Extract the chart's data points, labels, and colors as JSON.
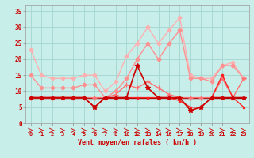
{
  "xlabel": "Vent moyen/en rafales ( km/h )",
  "bg_color": "#c8eeea",
  "grid_color": "#a8d8d4",
  "xlim": [
    -0.3,
    23.3
  ],
  "ylim": [
    0,
    37
  ],
  "yticks": [
    0,
    5,
    10,
    15,
    20,
    25,
    30,
    35
  ],
  "x_positions": [
    0,
    1,
    2,
    3,
    4,
    5,
    6,
    7,
    8,
    10,
    12,
    13,
    14,
    16,
    17,
    18,
    19,
    20,
    21,
    22,
    23
  ],
  "x_tick_labels": [
    "0",
    "1",
    "2",
    "3",
    "4",
    "5",
    "6",
    "7",
    "8",
    "10",
    "12",
    "13",
    "14",
    "16",
    "17",
    "18",
    "19",
    "20",
    "21",
    "22",
    "23"
  ],
  "series": [
    {
      "x": [
        0,
        1,
        2,
        3,
        4,
        5,
        6,
        7,
        8,
        10,
        12,
        13,
        14,
        16,
        17,
        18,
        19,
        20,
        21,
        22,
        23
      ],
      "y": [
        23,
        15,
        14,
        14,
        14,
        15,
        15,
        10,
        13,
        21,
        25,
        30,
        25,
        29,
        33,
        15,
        14,
        14,
        18,
        19,
        14
      ],
      "color": "#ffb0b0",
      "marker": "D",
      "markersize": 2.5,
      "linewidth": 1.0,
      "linestyle": "-",
      "zorder": 2
    },
    {
      "x": [
        0,
        1,
        2,
        3,
        4,
        5,
        6,
        7,
        8,
        10,
        12,
        13,
        14,
        16,
        17,
        18,
        19,
        20,
        21,
        22,
        23
      ],
      "y": [
        15,
        11,
        11,
        11,
        11,
        12,
        12,
        8,
        10,
        14,
        20,
        25,
        20,
        25,
        29,
        14,
        14,
        13,
        18,
        18,
        14
      ],
      "color": "#ff9090",
      "marker": "D",
      "markersize": 2.5,
      "linewidth": 1.0,
      "linestyle": "-",
      "zorder": 2
    },
    {
      "x": [
        0,
        1,
        2,
        3,
        4,
        5,
        6,
        7,
        8,
        10,
        12,
        13,
        14,
        16,
        17,
        18,
        19,
        20,
        21,
        22,
        23
      ],
      "y": [
        8,
        8,
        8,
        8,
        8,
        8,
        8,
        8,
        9,
        12,
        11,
        13,
        11,
        9,
        8,
        8,
        8,
        8,
        14,
        8,
        14
      ],
      "color": "#ff7070",
      "marker": "+",
      "markersize": 4,
      "linewidth": 1.0,
      "linestyle": "-",
      "zorder": 3
    },
    {
      "x": [
        0,
        1,
        2,
        3,
        4,
        5,
        6,
        7,
        8,
        10,
        12,
        13,
        14,
        16,
        17,
        18,
        19,
        20,
        21,
        22,
        23
      ],
      "y": [
        8,
        8,
        8,
        8,
        8,
        8,
        5,
        8,
        8,
        8,
        18,
        11,
        8,
        8,
        8,
        4,
        5,
        8,
        8,
        8,
        8
      ],
      "color": "#cc0000",
      "marker": "*",
      "markersize": 4,
      "linewidth": 1.2,
      "linestyle": "-",
      "zorder": 4
    },
    {
      "x": [
        0,
        1,
        2,
        3,
        4,
        5,
        6,
        7,
        8,
        10,
        12,
        13,
        14,
        16,
        17,
        18,
        19,
        20,
        21,
        22,
        23
      ],
      "y": [
        8,
        8,
        8,
        8,
        8,
        8,
        5,
        8,
        8,
        8,
        8,
        8,
        8,
        8,
        7,
        5,
        5,
        8,
        15,
        8,
        5
      ],
      "color": "#ff2222",
      "marker": "s",
      "markersize": 2,
      "linewidth": 1.0,
      "linestyle": "-",
      "zorder": 3
    },
    {
      "x": [
        0,
        1,
        2,
        3,
        4,
        5,
        6,
        7,
        8,
        10,
        12,
        13,
        14,
        16,
        17,
        18,
        19,
        20,
        21,
        22,
        23
      ],
      "y": [
        8,
        8,
        8,
        8,
        8,
        8,
        8,
        8,
        8,
        8,
        8,
        8,
        8,
        8,
        8,
        8,
        8,
        8,
        8,
        8,
        8
      ],
      "color": "#990000",
      "marker": null,
      "markersize": 0,
      "linewidth": 1.0,
      "linestyle": "-",
      "zorder": 2
    }
  ],
  "arrow_angles": [
    0,
    0,
    0,
    0,
    0,
    0,
    0,
    0,
    0,
    0,
    0,
    0,
    0,
    45,
    45,
    315,
    0,
    0,
    0,
    0,
    0
  ],
  "arrow_color": "#cc0000"
}
